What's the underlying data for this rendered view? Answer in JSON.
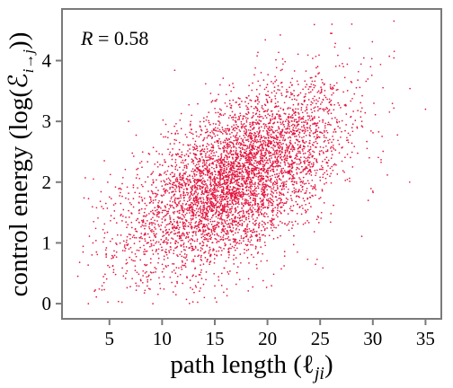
{
  "chart_data": {
    "type": "scatter",
    "title": "",
    "xlabel": "path length (ℓ",
    "xlabel_sub": "ji",
    "xlabel_close": ")",
    "ylabel": "control energy (log(ℰ",
    "ylabel_sub": "i→j",
    "ylabel_close": "))",
    "annotation_label": "R",
    "annotation_value": " = 0.58",
    "xlim": [
      0.5,
      36.5
    ],
    "ylim": [
      -0.25,
      4.85
    ],
    "xticks": [
      5,
      10,
      15,
      20,
      25,
      30,
      35
    ],
    "yticks": [
      0,
      1,
      2,
      3,
      4
    ],
    "xtick_labels": [
      "5",
      "10",
      "15",
      "20",
      "25",
      "30",
      "35"
    ],
    "ytick_labels": [
      "0",
      "1",
      "2",
      "3",
      "4"
    ],
    "grid": false,
    "legend": "none",
    "point_color": "#e3163f",
    "correlation": 0.58,
    "approx_point_count": 5000,
    "x_range_of_points": [
      2,
      35
    ],
    "y_range_of_points": [
      0,
      4.65
    ],
    "density_center": {
      "x": 17,
      "y": 2.05
    },
    "sample_points": [
      {
        "x": 2.0,
        "y": 0.45
      },
      {
        "x": 2.5,
        "y": 0.85
      },
      {
        "x": 3.0,
        "y": 0.0
      },
      {
        "x": 3.5,
        "y": 1.35
      },
      {
        "x": 5.0,
        "y": 0.6
      },
      {
        "x": 6.0,
        "y": 1.9
      },
      {
        "x": 8.0,
        "y": 1.1
      },
      {
        "x": 10.0,
        "y": 1.5
      },
      {
        "x": 12.0,
        "y": 2.2
      },
      {
        "x": 14.0,
        "y": 0.1
      },
      {
        "x": 15.0,
        "y": 2.0
      },
      {
        "x": 17.0,
        "y": 2.1
      },
      {
        "x": 19.0,
        "y": 1.8
      },
      {
        "x": 20.0,
        "y": 2.6
      },
      {
        "x": 22.0,
        "y": 3.0
      },
      {
        "x": 24.0,
        "y": 2.4
      },
      {
        "x": 26.0,
        "y": 4.45
      },
      {
        "x": 28.0,
        "y": 4.6
      },
      {
        "x": 30.0,
        "y": 1.85
      },
      {
        "x": 32.0,
        "y": 4.65
      },
      {
        "x": 33.5,
        "y": 2.0
      },
      {
        "x": 35.0,
        "y": 3.2
      }
    ]
  }
}
